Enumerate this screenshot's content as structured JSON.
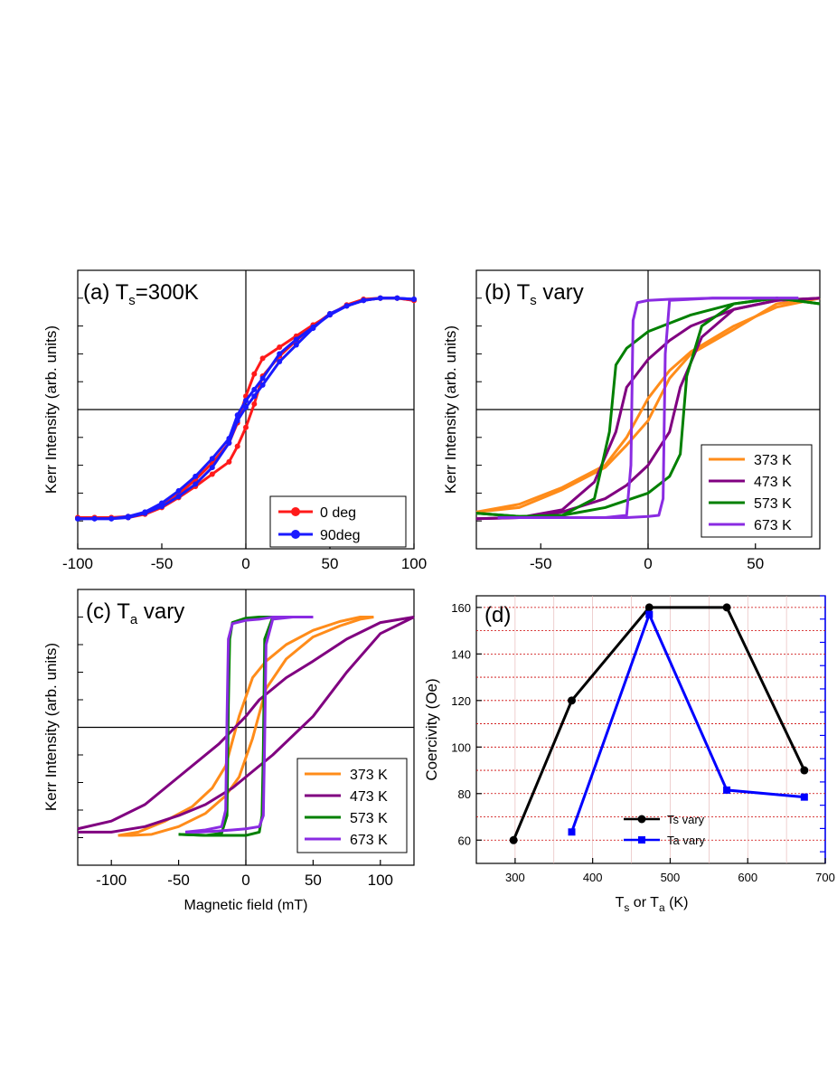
{
  "figure": {
    "shared_y_label": "Kerr Intensity (arb. units)"
  },
  "chart_data": [
    {
      "id": "a",
      "type": "line",
      "title_main": "(a) T",
      "title_sub": "s",
      "title_tail": "=300K",
      "xlabel": "",
      "ylabel": "Kerr Intensity (arb. units)",
      "xlim": [
        -100,
        100
      ],
      "ylim": [
        -1.25,
        1.25
      ],
      "xticks": [
        "-100",
        "-50",
        "0",
        "50",
        "100"
      ],
      "xtick_values": [
        -100,
        -50,
        0,
        50,
        100
      ],
      "legend_position": "bottom-right",
      "markers": true,
      "series": [
        {
          "name": "0 deg",
          "color": "#ff1a1a",
          "upper": {
            "x": [
              -100,
              -90,
              -80,
              -70,
              -60,
              -50,
              -40,
              -30,
              -20,
              -10,
              -5,
              0,
              5,
              10,
              20,
              30,
              40,
              50,
              60,
              70,
              80,
              90,
              100
            ],
            "y": [
              -0.97,
              -0.97,
              -0.97,
              -0.96,
              -0.93,
              -0.86,
              -0.76,
              -0.63,
              -0.48,
              -0.3,
              -0.12,
              0.12,
              0.32,
              0.46,
              0.56,
              0.66,
              0.76,
              0.85,
              0.94,
              0.99,
              1.0,
              1.0,
              0.98
            ]
          },
          "lower": {
            "x": [
              100,
              90,
              80,
              70,
              60,
              50,
              40,
              30,
              20,
              10,
              5,
              0,
              -5,
              -10,
              -20,
              -30,
              -40,
              -50,
              -60,
              -70,
              -80,
              -90,
              -100
            ],
            "y": [
              0.98,
              1.0,
              1.0,
              0.98,
              0.93,
              0.86,
              0.75,
              0.62,
              0.48,
              0.3,
              0.05,
              -0.16,
              -0.33,
              -0.47,
              -0.58,
              -0.69,
              -0.79,
              -0.88,
              -0.94,
              -0.97,
              -0.97,
              -0.97,
              -0.97
            ]
          }
        },
        {
          "name": "90deg",
          "color": "#1a1aff",
          "upper": {
            "x": [
              -100,
              -90,
              -80,
              -70,
              -60,
              -50,
              -40,
              -30,
              -20,
              -10,
              -5,
              0,
              5,
              10,
              20,
              30,
              40,
              50,
              60,
              70,
              80,
              90,
              100
            ],
            "y": [
              -0.98,
              -0.98,
              -0.98,
              -0.96,
              -0.92,
              -0.84,
              -0.73,
              -0.6,
              -0.44,
              -0.26,
              -0.05,
              0.08,
              0.18,
              0.28,
              0.5,
              0.63,
              0.74,
              0.85,
              0.93,
              0.98,
              1.0,
              1.0,
              0.99
            ]
          },
          "lower": {
            "x": [
              100,
              90,
              80,
              70,
              60,
              50,
              40,
              30,
              20,
              10,
              5,
              0,
              -5,
              -10,
              -20,
              -30,
              -40,
              -50,
              -60,
              -70,
              -80,
              -90,
              -100
            ],
            "y": [
              0.99,
              1.0,
              1.0,
              0.98,
              0.93,
              0.86,
              0.73,
              0.58,
              0.43,
              0.22,
              0.12,
              0.02,
              -0.1,
              -0.3,
              -0.52,
              -0.67,
              -0.78,
              -0.87,
              -0.93,
              -0.97,
              -0.98,
              -0.98,
              -0.98
            ]
          }
        }
      ]
    },
    {
      "id": "b",
      "type": "line",
      "title_main": "(b) T",
      "title_sub": "s",
      "title_tail": " vary",
      "xlabel": "",
      "ylabel": "Kerr Intensity (arb. units)",
      "xlim": [
        -80,
        80
      ],
      "ylim": [
        -1.25,
        1.25
      ],
      "xticks": [
        "-50",
        "0",
        "50"
      ],
      "xtick_values": [
        -50,
        0,
        50
      ],
      "legend_position": "bottom-right",
      "markers": false,
      "series": [
        {
          "name": "373 K",
          "color": "#ff8c1a",
          "upper": {
            "x": [
              -80,
              -60,
              -40,
              -20,
              -10,
              0,
              10,
              20,
              40,
              60,
              80
            ],
            "y": [
              -0.92,
              -0.85,
              -0.7,
              -0.5,
              -0.25,
              0.1,
              0.35,
              0.52,
              0.75,
              0.92,
              1.0
            ]
          },
          "lower": {
            "x": [
              80,
              60,
              40,
              20,
              10,
              0,
              -10,
              -20,
              -40,
              -60,
              -80
            ],
            "y": [
              1.0,
              0.95,
              0.72,
              0.5,
              0.28,
              -0.1,
              -0.32,
              -0.52,
              -0.72,
              -0.88,
              -0.92
            ]
          }
        },
        {
          "name": "473 K",
          "color": "#800080",
          "upper": {
            "x": [
              -80,
              -60,
              -40,
              -25,
              -15,
              -10,
              0,
              10,
              20,
              40,
              60,
              80
            ],
            "y": [
              -0.98,
              -0.97,
              -0.9,
              -0.65,
              -0.2,
              0.2,
              0.45,
              0.62,
              0.75,
              0.9,
              0.98,
              1.0
            ]
          },
          "lower": {
            "x": [
              80,
              60,
              40,
              25,
              15,
              10,
              0,
              -10,
              -20,
              -40,
              -60,
              -80
            ],
            "y": [
              1.0,
              0.98,
              0.9,
              0.65,
              0.2,
              -0.2,
              -0.5,
              -0.68,
              -0.8,
              -0.92,
              -0.97,
              -0.98
            ]
          }
        },
        {
          "name": "573 K",
          "color": "#008000",
          "upper": {
            "x": [
              -80,
              -60,
              -40,
              -25,
              -18,
              -15,
              -10,
              0,
              20,
              40,
              60,
              80
            ],
            "y": [
              -0.93,
              -0.96,
              -0.95,
              -0.8,
              -0.2,
              0.4,
              0.55,
              0.7,
              0.85,
              0.95,
              1.0,
              0.95
            ]
          },
          "lower": {
            "x": [
              80,
              60,
              40,
              25,
              18,
              15,
              10,
              0,
              -20,
              -40,
              -60,
              -80
            ],
            "y": [
              0.95,
              1.0,
              0.95,
              0.75,
              0.3,
              -0.4,
              -0.6,
              -0.75,
              -0.88,
              -0.95,
              -0.96,
              -0.93
            ]
          }
        },
        {
          "name": "673 K",
          "color": "#8a2be2",
          "upper": {
            "x": [
              -70,
              -40,
              -20,
              -10,
              -8,
              -7,
              -5,
              0,
              10,
              30,
              50,
              70
            ],
            "y": [
              -0.97,
              -0.97,
              -0.97,
              -0.95,
              -0.5,
              0.8,
              0.96,
              0.98,
              0.99,
              1.0,
              1.0,
              1.0
            ]
          },
          "lower": {
            "x": [
              70,
              50,
              30,
              10,
              8,
              7,
              5,
              0,
              -10,
              -30,
              -50,
              -70
            ],
            "y": [
              1.0,
              1.0,
              1.0,
              0.98,
              0.5,
              -0.8,
              -0.95,
              -0.96,
              -0.97,
              -0.97,
              -0.97,
              -0.97
            ]
          }
        }
      ]
    },
    {
      "id": "c",
      "type": "line",
      "title_main": "(c) T",
      "title_sub": "a",
      "title_tail": " vary",
      "xlabel": "Magnetic field (mT)",
      "ylabel": "Kerr Intensity (arb. units)",
      "xlim": [
        -125,
        125
      ],
      "ylim": [
        -1.25,
        1.25
      ],
      "xticks": [
        "-100",
        "-50",
        "0",
        "50",
        "100"
      ],
      "xtick_values": [
        -100,
        -50,
        0,
        50,
        100
      ],
      "legend_position": "bottom-right",
      "markers": false,
      "series": [
        {
          "name": "373 K",
          "color": "#ff8c1a",
          "upper": {
            "x": [
              -95,
              -80,
              -60,
              -40,
              -25,
              -15,
              -5,
              5,
              15,
              30,
              50,
              70,
              85,
              95
            ],
            "y": [
              -0.98,
              -0.95,
              -0.85,
              -0.72,
              -0.55,
              -0.35,
              0.1,
              0.45,
              0.6,
              0.75,
              0.88,
              0.96,
              1.0,
              1.0
            ]
          },
          "lower": {
            "x": [
              95,
              85,
              70,
              50,
              30,
              15,
              5,
              -5,
              -15,
              -30,
              -50,
              -70,
              -85,
              -95
            ],
            "y": [
              1.0,
              0.98,
              0.92,
              0.82,
              0.62,
              0.35,
              -0.1,
              -0.45,
              -0.62,
              -0.78,
              -0.9,
              -0.97,
              -0.98,
              -0.98
            ]
          }
        },
        {
          "name": "473 K",
          "color": "#800080",
          "upper": {
            "x": [
              -125,
              -100,
              -75,
              -50,
              -30,
              -10,
              0,
              20,
              50,
              75,
              100,
              125
            ],
            "y": [
              -0.95,
              -0.95,
              -0.9,
              -0.8,
              -0.7,
              -0.55,
              -0.45,
              -0.25,
              0.1,
              0.5,
              0.85,
              1.0
            ]
          },
          "lower": {
            "x": [
              125,
              100,
              75,
              50,
              30,
              10,
              0,
              -20,
              -50,
              -75,
              -100,
              -125
            ],
            "y": [
              1.0,
              0.95,
              0.8,
              0.6,
              0.45,
              0.25,
              0.1,
              -0.15,
              -0.45,
              -0.7,
              -0.85,
              -0.92
            ]
          }
        },
        {
          "name": "573 K",
          "color": "#008000",
          "upper": {
            "x": [
              -50,
              -30,
              -18,
              -14,
              -13,
              -12,
              -10,
              0,
              10,
              20,
              30,
              40
            ],
            "y": [
              -0.97,
              -0.98,
              -0.96,
              -0.8,
              0.2,
              0.8,
              0.95,
              0.99,
              1.0,
              1.0,
              1.0,
              1.0
            ]
          },
          "lower": {
            "x": [
              40,
              30,
              20,
              14,
              13,
              12,
              10,
              0,
              -10,
              -20,
              -30,
              -50
            ],
            "y": [
              1.0,
              1.0,
              1.0,
              0.8,
              -0.2,
              -0.8,
              -0.95,
              -0.98,
              -0.98,
              -0.98,
              -0.98,
              -0.97
            ]
          }
        },
        {
          "name": "673 K",
          "color": "#8a2be2",
          "upper": {
            "x": [
              -45,
              -30,
              -18,
              -15,
              -14,
              -13,
              -10,
              0,
              10,
              20,
              35,
              50
            ],
            "y": [
              -0.95,
              -0.93,
              -0.9,
              -0.75,
              0.1,
              0.8,
              0.94,
              0.97,
              0.98,
              1.0,
              1.0,
              1.0
            ]
          },
          "lower": {
            "x": [
              50,
              35,
              20,
              15,
              14,
              13,
              10,
              0,
              -10,
              -20,
              -35,
              -45
            ],
            "y": [
              1.0,
              1.0,
              0.98,
              0.75,
              -0.1,
              -0.8,
              -0.9,
              -0.92,
              -0.93,
              -0.94,
              -0.95,
              -0.95
            ]
          }
        }
      ]
    },
    {
      "id": "d",
      "type": "line",
      "title_main": "(d)",
      "xlabel_main": "T",
      "xlabel_sub1": "s",
      "xlabel_mid": " or T",
      "xlabel_sub2": "a",
      "xlabel_tail": " (K)",
      "ylabel": "Coercivity (Oe)",
      "xlim": [
        250,
        700
      ],
      "ylim": [
        50,
        165
      ],
      "xticks": [
        "300",
        "400",
        "500",
        "600",
        "700"
      ],
      "xtick_values": [
        300,
        400,
        500,
        600,
        700
      ],
      "yticks": [
        "60",
        "80",
        "100",
        "120",
        "140",
        "160"
      ],
      "ytick_values": [
        60,
        80,
        100,
        120,
        140,
        160
      ],
      "right_axis_color": "#0000ff",
      "legend_position": "bottom-center",
      "series": [
        {
          "name": "Ts vary",
          "color": "#000000",
          "marker": "circle",
          "x": [
            298,
            373,
            473,
            573,
            673
          ],
          "y": [
            60,
            120,
            160,
            160,
            90
          ]
        },
        {
          "name": "Ta vary",
          "color": "#0000ff",
          "marker": "square",
          "x": [
            373,
            473,
            573,
            673
          ],
          "y": [
            63.5,
            157,
            81.5,
            78.5
          ]
        }
      ]
    }
  ]
}
